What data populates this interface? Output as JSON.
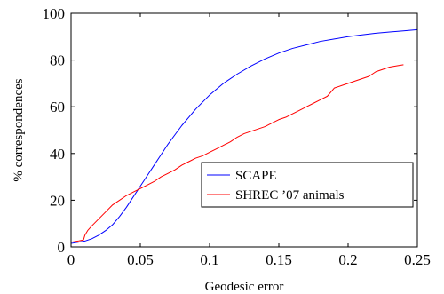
{
  "chart_data": {
    "type": "line",
    "title": "",
    "xlabel": "Geodesic error",
    "ylabel": "% correspondences",
    "xlim": [
      0,
      0.25
    ],
    "ylim": [
      0,
      100
    ],
    "xticks": [
      0,
      0.05,
      0.1,
      0.15,
      0.2,
      0.25
    ],
    "xtick_labels": [
      "0",
      "0.05",
      "0.1",
      "0.15",
      "0.2",
      "0.25"
    ],
    "yticks": [
      0,
      20,
      40,
      60,
      80,
      100
    ],
    "ytick_labels": [
      "0",
      "20",
      "40",
      "60",
      "80",
      "100"
    ],
    "grid": false,
    "legend_position": "center-right",
    "series": [
      {
        "name": "SCAPE",
        "color": "#0000ff",
        "x": [
          0,
          0.005,
          0.01,
          0.015,
          0.02,
          0.025,
          0.03,
          0.035,
          0.04,
          0.045,
          0.05,
          0.055,
          0.06,
          0.065,
          0.07,
          0.075,
          0.08,
          0.085,
          0.09,
          0.095,
          0.1,
          0.11,
          0.12,
          0.13,
          0.14,
          0.15,
          0.16,
          0.17,
          0.18,
          0.19,
          0.2,
          0.21,
          0.22,
          0.23,
          0.24,
          0.25
        ],
        "y": [
          1.5,
          2,
          2.5,
          3.5,
          5,
          7,
          9.5,
          13,
          17,
          21.5,
          26,
          30.5,
          35,
          39.5,
          44,
          48,
          52,
          55.5,
          59,
          62,
          65,
          70,
          74,
          77.5,
          80.5,
          83,
          85,
          86.5,
          88,
          89,
          90,
          90.8,
          91.5,
          92,
          92.5,
          93
        ]
      },
      {
        "name": "SHREC ’07 animals",
        "color": "#ff0000",
        "x": [
          0,
          0.005,
          0.009,
          0.01,
          0.012,
          0.015,
          0.02,
          0.025,
          0.03,
          0.035,
          0.04,
          0.045,
          0.05,
          0.055,
          0.06,
          0.065,
          0.07,
          0.075,
          0.08,
          0.085,
          0.09,
          0.095,
          0.1,
          0.105,
          0.11,
          0.115,
          0.12,
          0.125,
          0.13,
          0.135,
          0.14,
          0.145,
          0.15,
          0.155,
          0.16,
          0.165,
          0.17,
          0.175,
          0.18,
          0.185,
          0.19,
          0.195,
          0.2,
          0.205,
          0.21,
          0.215,
          0.22,
          0.225,
          0.23,
          0.235,
          0.24
        ],
        "y": [
          2,
          2.5,
          3,
          5,
          7,
          9,
          12,
          15,
          18,
          20,
          22,
          23.5,
          25,
          26.5,
          28,
          30,
          31.5,
          33,
          35,
          36.5,
          38,
          39,
          40.5,
          42,
          43.5,
          45,
          47,
          48.5,
          49.5,
          50.5,
          51.5,
          53,
          54.5,
          55.5,
          57,
          58.5,
          60,
          61.5,
          63,
          64.5,
          68,
          69,
          70,
          71,
          72,
          73,
          75,
          76,
          77,
          77.5,
          78
        ]
      }
    ]
  }
}
